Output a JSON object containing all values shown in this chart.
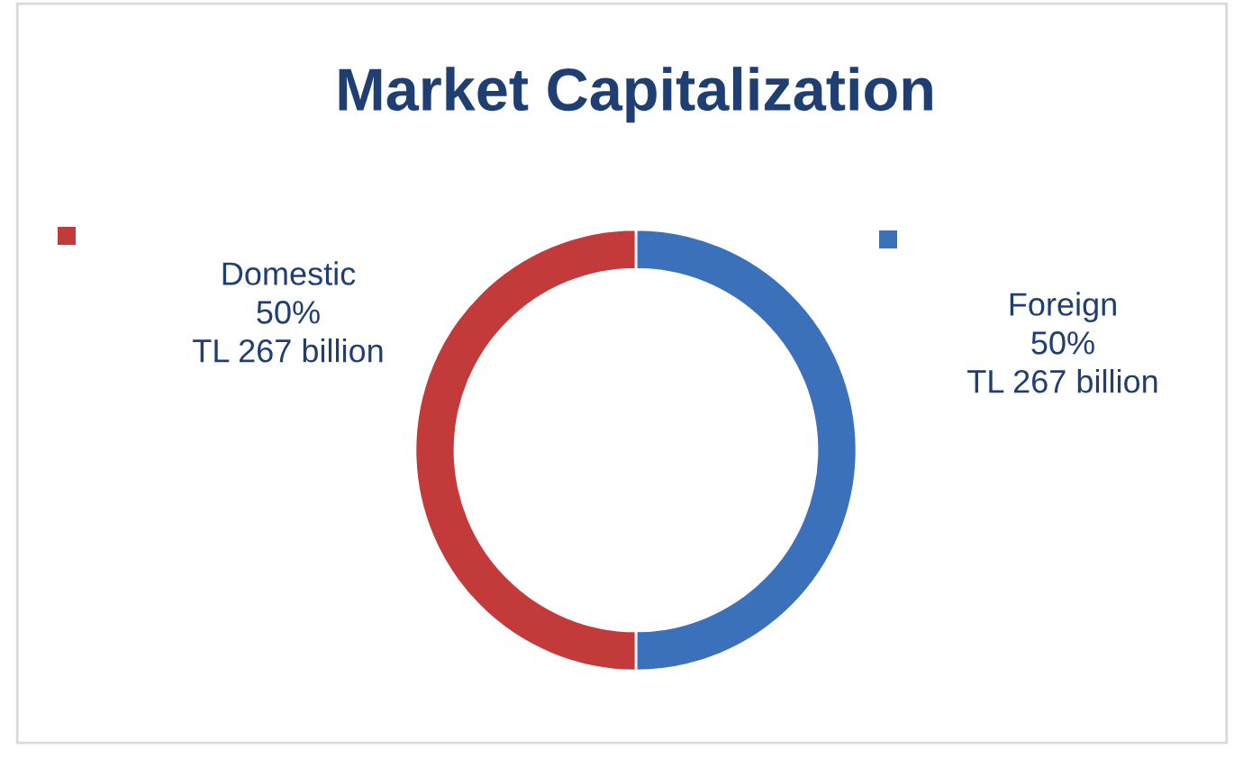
{
  "chart_data": {
    "type": "donut",
    "title": "Market Capitalization",
    "categories": [
      "Foreign",
      "Domestic"
    ],
    "values": [
      50,
      50
    ],
    "colors": [
      "#3b70bb",
      "#c23b3a"
    ],
    "value_labels": [
      "50%\nTL 267 billion",
      "50%\nTL 267 billion"
    ],
    "legend": false
  }
}
